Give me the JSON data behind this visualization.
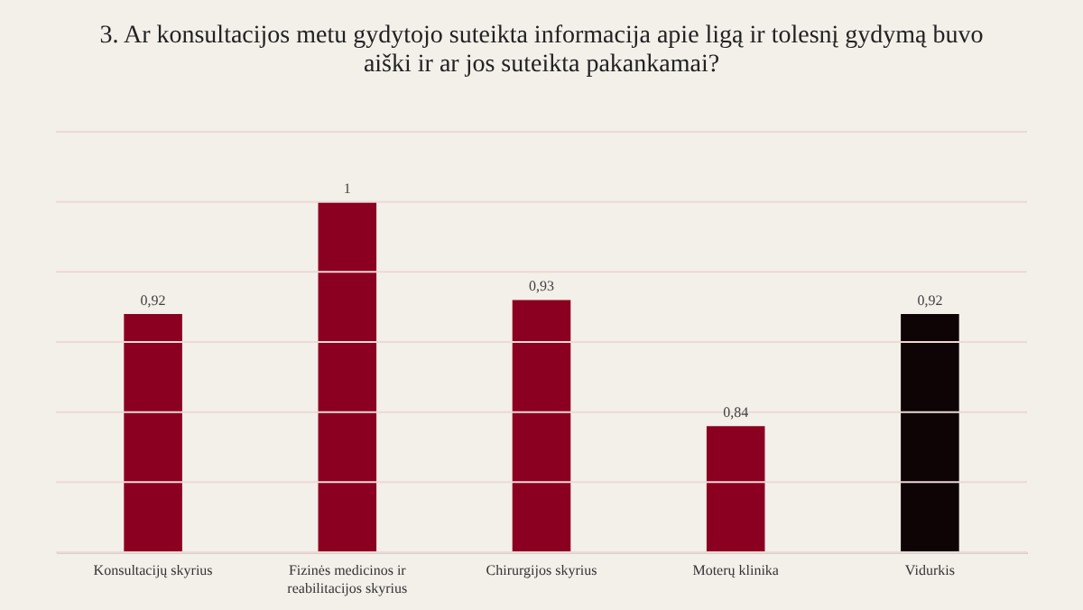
{
  "chart_data": {
    "type": "bar",
    "title": "3. Ar konsultacijos metu gydytojo  suteikta informacija apie ligą ir tolesnį gydymą buvo aiški ir ar jos suteikta pakankamai?",
    "categories": [
      "Konsultacijų skyrius",
      "Fizinės medicinos ir reabilitacijos skyrius",
      "Chirurgijos skyrius",
      "Moterų klinika",
      "Vidurkis"
    ],
    "values": [
      0.92,
      1,
      0.93,
      0.84,
      0.92
    ],
    "colors": [
      "#8b0020",
      "#8b0020",
      "#8b0020",
      "#8b0020",
      "#0e0406"
    ],
    "value_labels": [
      "0,92",
      "1",
      "0,93",
      "0,84",
      "0,92"
    ],
    "ylim": [
      0.75,
      1.05
    ],
    "yticks": [
      {
        "value": 0.75,
        "label": null
      },
      {
        "value": 0.8,
        "label": null
      },
      {
        "value": 0.85,
        "label": null
      },
      {
        "value": 0.9,
        "label": null
      },
      {
        "value": 0.95,
        "label": null
      },
      {
        "value": 1.0,
        "label": null
      },
      {
        "value": 1.05,
        "label": null
      }
    ],
    "grid": "y",
    "tick_labels": "x"
  }
}
